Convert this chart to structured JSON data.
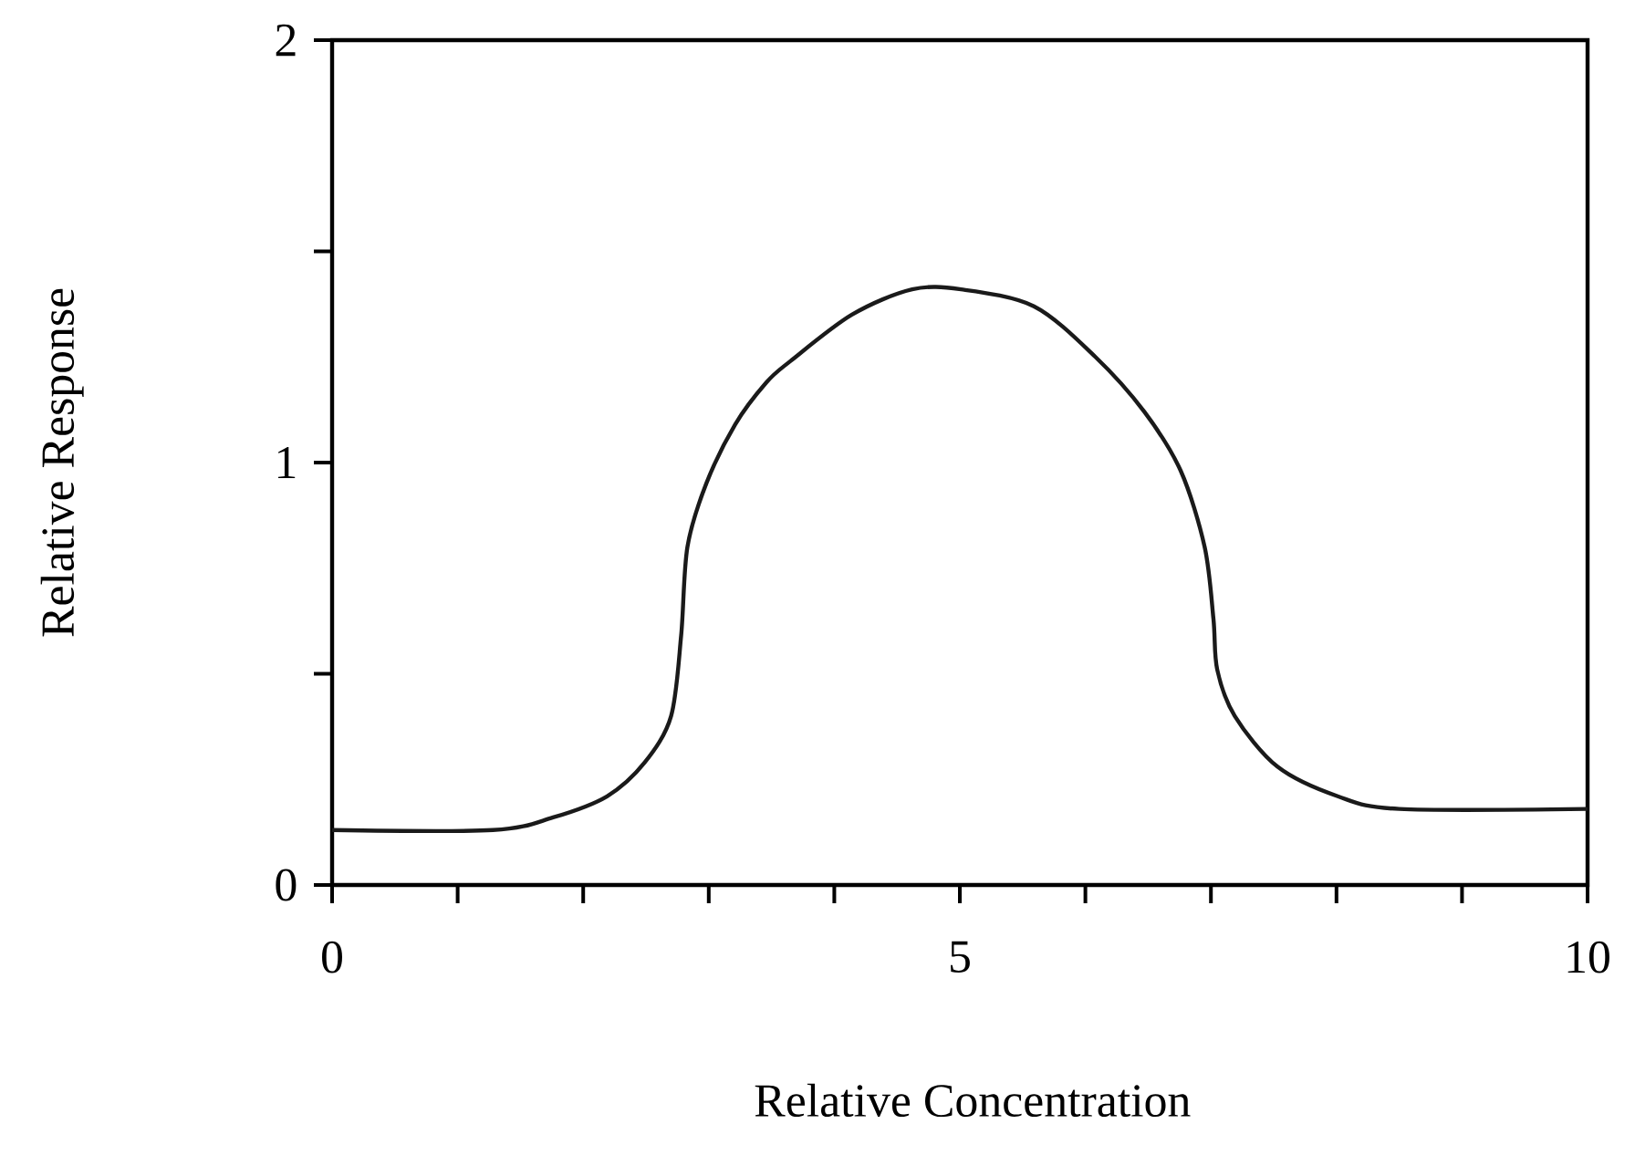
{
  "chart_data": {
    "type": "line",
    "xlabel": "Relative Concentration",
    "ylabel": "Relative Response",
    "x": [
      0,
      1.28,
      1.76,
      2.19,
      2.49,
      2.7,
      2.78,
      2.83,
      2.98,
      3.21,
      3.46,
      3.65,
      4.14,
      4.62,
      5.01,
      5.59,
      6.08,
      6.47,
      6.76,
      6.95,
      7.02,
      7.05,
      7.19,
      7.53,
      8.01,
      8.5,
      10
    ],
    "series": [
      {
        "color": "#1a1a1a",
        "values": [
          0.13,
          0.13,
          0.16,
          0.21,
          0.29,
          0.4,
          0.59,
          0.8,
          0.95,
          1.09,
          1.19,
          1.24,
          1.35,
          1.41,
          1.41,
          1.37,
          1.25,
          1.12,
          0.98,
          0.8,
          0.63,
          0.51,
          0.4,
          0.28,
          0.21,
          0.18,
          0.18
        ]
      }
    ],
    "xlim": [
      0,
      10
    ],
    "ylim": [
      0,
      2
    ],
    "xticks": [
      0,
      {
        "value": 1,
        "label": null
      },
      {
        "value": 2,
        "label": null
      },
      {
        "value": 3,
        "label": null
      },
      {
        "value": 4,
        "label": null
      },
      5,
      {
        "value": 6,
        "label": null
      },
      {
        "value": 7,
        "label": null
      },
      {
        "value": 8,
        "label": null
      },
      {
        "value": 9,
        "label": null
      },
      10
    ],
    "yticks": [
      0,
      {
        "value": 0.5,
        "label": null
      },
      1,
      {
        "value": 1.5,
        "label": null
      },
      2
    ],
    "line_style": "solid"
  }
}
